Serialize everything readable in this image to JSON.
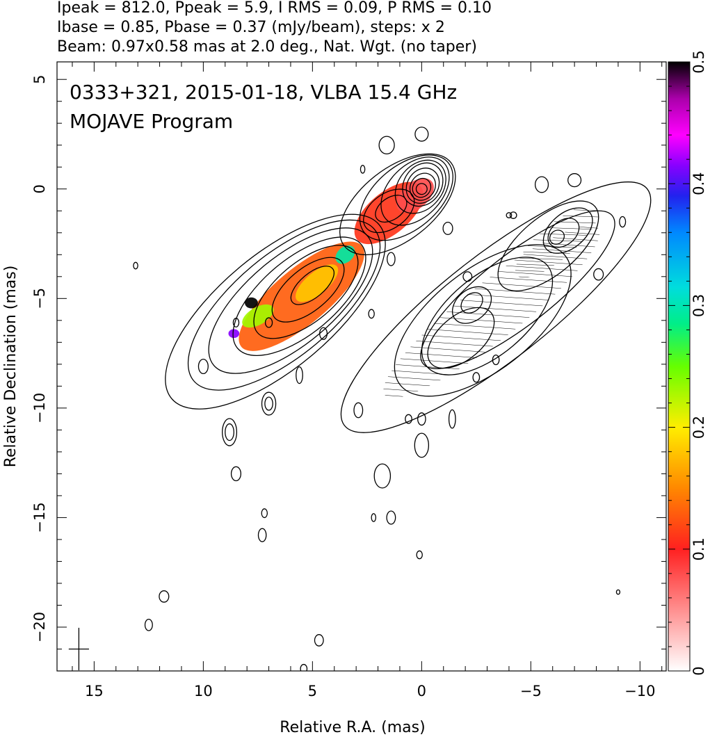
{
  "header": {
    "line1": "Ipeak = 812.0, Ppeak = 5.9, I RMS = 0.09, P RMS = 0.10",
    "line2": "Ibase = 0.85, Pbase = 0.37 (mJy/beam), steps: x 2",
    "line3": "Beam: 0.97x0.58 mas at 2.0 deg., Nat. Wgt. (no taper)"
  },
  "chart_data": {
    "type": "contour",
    "title": "0333+321, 2015-01-18, VLBA 15.4 GHz",
    "subtitle": "MOJAVE Program",
    "xlabel": "Relative R.A. (mas)",
    "ylabel": "Relative Declination (mas)",
    "xlim": [
      16.7,
      -11.2
    ],
    "ylim": [
      -22.0,
      5.8
    ],
    "x_ticks": [
      15,
      10,
      5,
      0,
      -5,
      -10
    ],
    "x_tick_labels": [
      "15",
      "10",
      "5",
      "0",
      "−5",
      "−10"
    ],
    "y_ticks": [
      5,
      0,
      -5,
      -10,
      -15,
      -20
    ],
    "y_tick_labels": [
      "5",
      "0",
      "−5",
      "−10",
      "−15",
      "−20"
    ],
    "colorbar": {
      "range": [
        0,
        0.5
      ],
      "ticks": [
        0,
        0.1,
        0.2,
        0.3,
        0.4,
        0.5
      ],
      "tick_labels": [
        "0",
        "0.1",
        "0.2",
        "0.3",
        "0.4",
        "0.5"
      ],
      "colors": [
        "#ffffff",
        "#ffb0b0",
        "#ff2020",
        "#ff8800",
        "#ffee00",
        "#88ff00",
        "#00ee88",
        "#00dddd",
        "#0088ff",
        "#2222ee",
        "#8800ff",
        "#ff00ff",
        "#aa00aa",
        "#000000"
      ]
    },
    "core": {
      "ra": 0.0,
      "dec": 0.0
    },
    "total_intensity_contours": [
      {
        "ra": 0.0,
        "dec": 0.0,
        "a": 0.25,
        "b": 0.25,
        "pa": 55
      },
      {
        "ra": 0.0,
        "dec": 0.05,
        "a": 0.45,
        "b": 0.4,
        "pa": 55
      },
      {
        "ra": -0.05,
        "dec": 0.1,
        "a": 0.65,
        "b": 0.55,
        "pa": 55
      },
      {
        "ra": -0.05,
        "dec": 0.15,
        "a": 0.85,
        "b": 0.7,
        "pa": 55
      },
      {
        "ra": -0.05,
        "dec": 0.2,
        "a": 1.05,
        "b": 0.85,
        "pa": 55
      },
      {
        "ra": 0.05,
        "dec": 0.1,
        "a": 1.35,
        "b": 1.0,
        "pa": 50
      },
      {
        "ra": 0.3,
        "dec": -0.1,
        "a": 1.85,
        "b": 1.2,
        "pa": 45
      },
      {
        "ra": 0.7,
        "dec": -0.4,
        "a": 2.5,
        "b": 1.45,
        "pa": 40
      },
      {
        "ra": 1.1,
        "dec": -0.7,
        "a": 3.1,
        "b": 1.65,
        "pa": 38
      },
      {
        "ra": 1.4,
        "dec": -0.9,
        "a": 0.8,
        "b": 0.5,
        "pa": 35
      },
      {
        "ra": 1.5,
        "dec": -1.0,
        "a": 1.3,
        "b": 0.8,
        "pa": 35
      },
      {
        "ra": 5.0,
        "dec": -4.4,
        "a": 1.2,
        "b": 0.55,
        "pa": 40
      },
      {
        "ra": 5.2,
        "dec": -4.6,
        "a": 2.0,
        "b": 0.95,
        "pa": 40
      },
      {
        "ra": 5.3,
        "dec": -4.7,
        "a": 2.9,
        "b": 1.35,
        "pa": 40
      },
      {
        "ra": 5.6,
        "dec": -4.9,
        "a": 3.7,
        "b": 1.7,
        "pa": 40
      },
      {
        "ra": 6.0,
        "dec": -5.1,
        "a": 4.6,
        "b": 2.0,
        "pa": 40
      },
      {
        "ra": 6.3,
        "dec": -5.3,
        "a": 5.4,
        "b": 2.3,
        "pa": 40
      },
      {
        "ra": 6.7,
        "dec": -5.6,
        "a": 6.2,
        "b": 2.6,
        "pa": 40
      },
      {
        "ra": -2.3,
        "dec": -5.2,
        "a": 0.55,
        "b": 0.4,
        "pa": 40
      },
      {
        "ra": -2.3,
        "dec": -5.3,
        "a": 1.0,
        "b": 0.7,
        "pa": 40
      },
      {
        "ra": -1.8,
        "dec": -6.8,
        "a": 1.8,
        "b": 1.0,
        "pa": 40
      },
      {
        "ra": -3.0,
        "dec": -5.8,
        "a": 3.6,
        "b": 1.8,
        "pa": 40
      },
      {
        "ra": -2.8,
        "dec": -6.0,
        "a": 4.8,
        "b": 2.3,
        "pa": 38
      },
      {
        "ra": -6.2,
        "dec": -2.2,
        "a": 0.35,
        "b": 0.3,
        "pa": 40
      },
      {
        "ra": -6.5,
        "dec": -2.0,
        "a": 0.8,
        "b": 0.55,
        "pa": 40
      },
      {
        "ra": -6.7,
        "dec": -1.9,
        "a": 1.3,
        "b": 0.8,
        "pa": 40
      },
      {
        "ra": -5.8,
        "dec": -2.6,
        "a": 2.8,
        "b": 1.3,
        "pa": 40
      },
      {
        "ra": -4.4,
        "dec": -4.6,
        "a": 5.5,
        "b": 1.6,
        "pa": 38
      },
      {
        "ra": -3.4,
        "dec": -5.4,
        "a": 8.8,
        "b": 2.4,
        "pa": 38
      },
      {
        "ra": 1.6,
        "dec": 2.0,
        "a": 0.35,
        "b": 0.4,
        "pa": 0
      },
      {
        "ra": 0.0,
        "dec": 2.5,
        "a": 0.3,
        "b": 0.32,
        "pa": 0
      },
      {
        "ra": 2.7,
        "dec": 0.9,
        "a": 0.1,
        "b": 0.18,
        "pa": 0
      },
      {
        "ra": -1.2,
        "dec": -1.8,
        "a": 0.22,
        "b": 0.28,
        "pa": 0
      },
      {
        "ra": -2.1,
        "dec": -4.0,
        "a": 0.2,
        "b": 0.22,
        "pa": 0
      },
      {
        "ra": -5.5,
        "dec": 0.2,
        "a": 0.3,
        "b": 0.36,
        "pa": 0
      },
      {
        "ra": -7.0,
        "dec": 0.4,
        "a": 0.3,
        "b": 0.3,
        "pa": 0
      },
      {
        "ra": -8.1,
        "dec": -3.9,
        "a": 0.22,
        "b": 0.26,
        "pa": 0
      },
      {
        "ra": -4.2,
        "dec": -1.2,
        "a": 0.15,
        "b": 0.15,
        "pa": 0
      },
      {
        "ra": -4.0,
        "dec": -1.2,
        "a": 0.12,
        "b": 0.12,
        "pa": 0
      },
      {
        "ra": 1.4,
        "dec": -3.2,
        "a": 0.18,
        "b": 0.3,
        "pa": 0
      },
      {
        "ra": 2.3,
        "dec": -5.7,
        "a": 0.13,
        "b": 0.2,
        "pa": 0
      },
      {
        "ra": 4.5,
        "dec": -6.6,
        "a": 0.17,
        "b": 0.27,
        "pa": 0
      },
      {
        "ra": 10.0,
        "dec": -8.1,
        "a": 0.22,
        "b": 0.33,
        "pa": 0
      },
      {
        "ra": 8.5,
        "dec": -6.1,
        "a": 0.13,
        "b": 0.2,
        "pa": 0
      },
      {
        "ra": 7.0,
        "dec": -6.1,
        "a": 0.16,
        "b": 0.22,
        "pa": 0
      },
      {
        "ra": 5.6,
        "dec": -8.5,
        "a": 0.15,
        "b": 0.38,
        "pa": 0
      },
      {
        "ra": 7.0,
        "dec": -9.8,
        "a": 0.18,
        "b": 0.3,
        "pa": 0
      },
      {
        "ra": 7.0,
        "dec": -9.8,
        "a": 0.32,
        "b": 0.52,
        "pa": 0
      },
      {
        "ra": 8.8,
        "dec": -11.1,
        "a": 0.2,
        "b": 0.38,
        "pa": 0
      },
      {
        "ra": 8.8,
        "dec": -11.1,
        "a": 0.33,
        "b": 0.62,
        "pa": 0
      },
      {
        "ra": 8.5,
        "dec": -13.0,
        "a": 0.22,
        "b": 0.32,
        "pa": 0
      },
      {
        "ra": 2.9,
        "dec": -10.1,
        "a": 0.2,
        "b": 0.34,
        "pa": 0
      },
      {
        "ra": 0.6,
        "dec": -10.5,
        "a": 0.15,
        "b": 0.2,
        "pa": 0
      },
      {
        "ra": 0.0,
        "dec": -10.5,
        "a": 0.18,
        "b": 0.28,
        "pa": 0
      },
      {
        "ra": -1.4,
        "dec": -10.5,
        "a": 0.15,
        "b": 0.42,
        "pa": 0
      },
      {
        "ra": 0.0,
        "dec": -11.7,
        "a": 0.32,
        "b": 0.55,
        "pa": 0
      },
      {
        "ra": 1.8,
        "dec": -13.1,
        "a": 0.37,
        "b": 0.55,
        "pa": 0
      },
      {
        "ra": 1.4,
        "dec": -15.0,
        "a": 0.2,
        "b": 0.3,
        "pa": 0
      },
      {
        "ra": 2.2,
        "dec": -15.0,
        "a": 0.1,
        "b": 0.18,
        "pa": 0
      },
      {
        "ra": 7.2,
        "dec": -14.8,
        "a": 0.13,
        "b": 0.2,
        "pa": 0
      },
      {
        "ra": 7.3,
        "dec": -15.8,
        "a": 0.18,
        "b": 0.3,
        "pa": 0
      },
      {
        "ra": 0.1,
        "dec": -16.7,
        "a": 0.13,
        "b": 0.18,
        "pa": 0
      },
      {
        "ra": 11.8,
        "dec": -18.6,
        "a": 0.22,
        "b": 0.26,
        "pa": 0
      },
      {
        "ra": 12.5,
        "dec": -19.9,
        "a": 0.17,
        "b": 0.26,
        "pa": 0
      },
      {
        "ra": 4.7,
        "dec": -20.6,
        "a": 0.2,
        "b": 0.26,
        "pa": 0
      },
      {
        "ra": 5.4,
        "dec": -21.9,
        "a": 0.15,
        "b": 0.2,
        "pa": 0
      },
      {
        "ra": 13.1,
        "dec": -3.5,
        "a": 0.1,
        "b": 0.15,
        "pa": 0
      },
      {
        "ra": -9.2,
        "dec": -1.5,
        "a": 0.14,
        "b": 0.24,
        "pa": 0
      },
      {
        "ra": -9.0,
        "dec": -18.4,
        "a": 0.08,
        "b": 0.1,
        "pa": 0
      },
      {
        "ra": -3.4,
        "dec": -7.8,
        "a": 0.15,
        "b": 0.22,
        "pa": 0
      },
      {
        "ra": -2.5,
        "dec": -8.6,
        "a": 0.15,
        "b": 0.22,
        "pa": 0
      }
    ],
    "polarized_intensity_image": [
      {
        "ra": 1.5,
        "dec": -1.1,
        "a": 1.9,
        "b": 0.95,
        "pa": 40,
        "value": 0.11
      },
      {
        "ra": 0.3,
        "dec": -0.3,
        "a": 1.0,
        "b": 0.6,
        "pa": 40,
        "value": 0.08
      },
      {
        "ra": 5.5,
        "dec": -4.9,
        "a": 3.6,
        "b": 1.25,
        "pa": 40,
        "value": 0.13
      },
      {
        "ra": 4.8,
        "dec": -4.3,
        "a": 1.2,
        "b": 0.5,
        "pa": 40,
        "value": 0.18
      },
      {
        "ra": 7.5,
        "dec": -5.8,
        "a": 0.8,
        "b": 0.4,
        "pa": 30,
        "value": 0.23
      },
      {
        "ra": 3.5,
        "dec": -3.0,
        "a": 0.5,
        "b": 0.35,
        "pa": 40,
        "value": 0.3
      },
      {
        "ra": 7.8,
        "dec": -5.2,
        "a": 0.3,
        "b": 0.25,
        "pa": 0,
        "value": 0.5
      },
      {
        "ra": 8.6,
        "dec": -6.6,
        "a": 0.25,
        "b": 0.2,
        "pa": 0,
        "value": 0.42
      }
    ],
    "restoring_beam": {
      "ra": 15.7,
      "dec": -21.0,
      "major_mas": 0.97,
      "minor_mas": 0.58,
      "pa_deg": 2.0
    }
  }
}
